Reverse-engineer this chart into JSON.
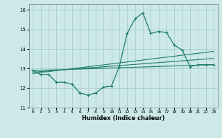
{
  "xlabel": "Humidex (Indice chaleur)",
  "bg_color": "#cce8e8",
  "grid_color": "#aacccc",
  "line_color": "#1a7a6a",
  "xlim": [
    -0.5,
    23.5
  ],
  "ylim": [
    11,
    16.3
  ],
  "yticks": [
    11,
    12,
    13,
    14,
    15,
    16
  ],
  "xticks": [
    0,
    1,
    2,
    3,
    4,
    5,
    6,
    7,
    8,
    9,
    10,
    11,
    12,
    13,
    14,
    15,
    16,
    17,
    18,
    19,
    20,
    21,
    22,
    23
  ],
  "series1_x": [
    0,
    1,
    2,
    3,
    4,
    5,
    6,
    7,
    8,
    9,
    10,
    11,
    12,
    13,
    14,
    15,
    16,
    17,
    18,
    19,
    20,
    21,
    22,
    23
  ],
  "series1_y": [
    12.9,
    12.7,
    12.7,
    12.3,
    12.3,
    12.2,
    11.75,
    11.65,
    11.75,
    12.05,
    12.1,
    13.1,
    14.8,
    15.55,
    15.85,
    14.8,
    14.9,
    14.85,
    14.2,
    13.95,
    13.1,
    13.2,
    13.2,
    13.2
  ],
  "series2_x": [
    0,
    23
  ],
  "series2_y": [
    12.9,
    13.2
  ],
  "series3_x": [
    0,
    23
  ],
  "series3_y": [
    12.82,
    13.52
  ],
  "series4_x": [
    0,
    23
  ],
  "series4_y": [
    12.75,
    13.88
  ]
}
